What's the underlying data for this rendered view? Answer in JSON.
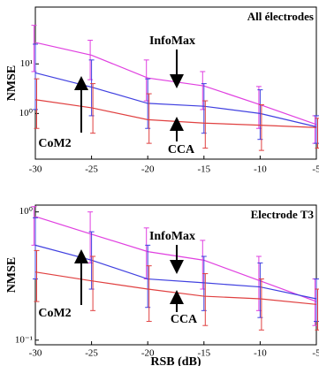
{
  "chart_data": [
    {
      "type": "line",
      "title": "All électrodes",
      "ylabel": "NMSE",
      "log_y": true,
      "x": [
        -30,
        -25,
        -20,
        -15,
        -10,
        -5
      ],
      "xlim": [
        -30,
        -5
      ],
      "xticks": [
        -30,
        -25,
        -20,
        -15,
        -10,
        -5
      ],
      "ylim": [
        0.12,
        140
      ],
      "yticks": [
        {
          "value": 1,
          "label": "10⁰"
        },
        {
          "value": 10,
          "label": "10¹"
        }
      ],
      "annotations": [
        "InfoMax",
        "CoM2",
        "CCA"
      ],
      "series": [
        {
          "name": "InfoMax",
          "color": "#e040e0",
          "values": [
            27,
            15,
            5.2,
            3.6,
            1.5,
            0.6
          ],
          "lower": [
            7,
            4.8,
            1.8,
            1.2,
            0.5,
            0.25
          ],
          "upper": [
            60,
            30,
            12,
            7,
            3.5,
            0.9
          ]
        },
        {
          "name": "CoM2",
          "color": "#4040e0",
          "values": [
            6.6,
            3.4,
            1.6,
            1.4,
            1.0,
            0.54
          ],
          "lower": [
            1.2,
            0.9,
            0.5,
            0.4,
            0.3,
            0.25
          ],
          "upper": [
            25,
            12,
            5,
            4,
            3,
            0.9
          ]
        },
        {
          "name": "CCA",
          "color": "#e04040",
          "values": [
            1.9,
            1.3,
            0.75,
            0.64,
            0.58,
            0.52
          ],
          "lower": [
            0.5,
            0.4,
            0.25,
            0.2,
            0.18,
            0.2
          ],
          "upper": [
            5,
            4,
            2.5,
            1.8,
            1.5,
            0.8
          ]
        }
      ]
    },
    {
      "type": "line",
      "title": "Electrode T3",
      "ylabel": "NMSE",
      "xlabel": "RSB (dB)",
      "log_y": true,
      "x": [
        -30,
        -25,
        -20,
        -15,
        -10,
        -5
      ],
      "xlim": [
        -30,
        -5
      ],
      "xticks": [
        -30,
        -25,
        -20,
        -15,
        -10,
        -5
      ],
      "ylim": [
        0.092,
        1.13
      ],
      "yticks": [
        {
          "value": 0.1,
          "label": "10⁻¹"
        },
        {
          "value": 1,
          "label": "10⁰"
        }
      ],
      "annotations": [
        "InfoMax",
        "CoM2",
        "CCA"
      ],
      "series": [
        {
          "name": "InfoMax",
          "color": "#e040e0",
          "values": [
            0.92,
            0.67,
            0.49,
            0.42,
            0.29,
            0.2
          ],
          "lower": [
            0.55,
            0.4,
            0.3,
            0.25,
            0.17,
            0.13
          ],
          "upper": [
            1.1,
            1.0,
            0.75,
            0.6,
            0.45,
            0.3
          ]
        },
        {
          "name": "CoM2",
          "color": "#4040e0",
          "values": [
            0.55,
            0.42,
            0.3,
            0.28,
            0.26,
            0.21
          ],
          "lower": [
            0.3,
            0.25,
            0.18,
            0.17,
            0.15,
            0.14
          ],
          "upper": [
            0.9,
            0.7,
            0.55,
            0.45,
            0.4,
            0.3
          ]
        },
        {
          "name": "CCA",
          "color": "#e04040",
          "values": [
            0.34,
            0.29,
            0.25,
            0.22,
            0.21,
            0.19
          ],
          "lower": [
            0.2,
            0.17,
            0.14,
            0.13,
            0.12,
            0.12
          ],
          "upper": [
            0.5,
            0.45,
            0.38,
            0.33,
            0.3,
            0.25
          ]
        }
      ]
    }
  ]
}
